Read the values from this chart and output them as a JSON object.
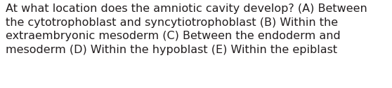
{
  "lines": [
    "At what location does the amniotic cavity develop? (A) Between",
    "the cytotrophoblast and syncytiotrophoblast (B) Within the",
    "extraembryonic mesoderm (C) Between the endoderm and",
    "mesoderm (D) Within the hypoblast (E) Within the epiblast"
  ],
  "background_color": "#ffffff",
  "text_color": "#231f20",
  "font_size": 11.5,
  "fig_width": 5.58,
  "fig_height": 1.26,
  "dpi": 100
}
